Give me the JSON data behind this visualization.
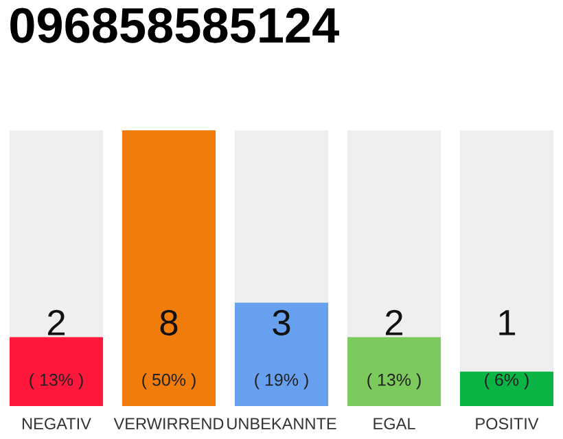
{
  "chart_data": {
    "type": "bar",
    "title": "096858585124",
    "categories": [
      "NEGATIV",
      "VERWIRREND",
      "UNBEKANNTE",
      "EGAL",
      "POSITIV"
    ],
    "values": [
      2,
      8,
      3,
      2,
      1
    ],
    "colors": [
      "#ff173c",
      "#f07c0c",
      "#66a0ef",
      "#7cc95e",
      "#0bb545"
    ],
    "data_labels": true,
    "annotations": [
      "( 13% )",
      "( 50% )",
      "( 19% )",
      "( 13% )",
      "( 6% )"
    ],
    "grid": false,
    "legend": false
  }
}
